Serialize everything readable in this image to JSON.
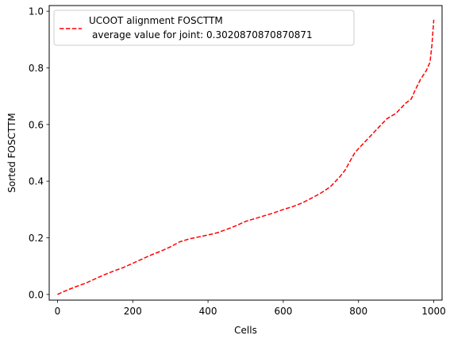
{
  "chart_data": {
    "type": "line",
    "xlabel": "Cells",
    "ylabel": "Sorted FOSCTTM",
    "xlim": [
      -22,
      1022
    ],
    "ylim": [
      -0.02,
      1.02
    ],
    "xticks": [
      0,
      200,
      400,
      600,
      800,
      1000
    ],
    "xtick_labels": [
      "0",
      "200",
      "400",
      "600",
      "800",
      "1000"
    ],
    "yticks": [
      0.0,
      0.2,
      0.4,
      0.6,
      0.8,
      1.0
    ],
    "ytick_labels": [
      "0.0",
      "0.2",
      "0.4",
      "0.6",
      "0.8",
      "1.0"
    ],
    "grid": false,
    "legend_position": "top-left",
    "series": [
      {
        "name": "UCOOT alignment FOSCTTM\n average value for joint: 0.3020870870870871",
        "color": "#ff0000",
        "line_style": "dashed",
        "x": [
          0,
          25,
          50,
          75,
          100,
          125,
          150,
          175,
          200,
          225,
          250,
          275,
          300,
          325,
          350,
          375,
          400,
          425,
          450,
          475,
          500,
          525,
          550,
          575,
          600,
          625,
          650,
          675,
          700,
          725,
          750,
          765,
          775,
          790,
          800,
          825,
          850,
          875,
          900,
          925,
          940,
          950,
          965,
          980,
          990,
          995,
          1000
        ],
        "y": [
          0.0,
          0.015,
          0.028,
          0.04,
          0.055,
          0.07,
          0.083,
          0.095,
          0.11,
          0.125,
          0.14,
          0.153,
          0.168,
          0.186,
          0.196,
          0.203,
          0.21,
          0.218,
          0.23,
          0.243,
          0.258,
          0.268,
          0.278,
          0.288,
          0.3,
          0.31,
          0.323,
          0.34,
          0.358,
          0.38,
          0.415,
          0.44,
          0.465,
          0.5,
          0.515,
          0.55,
          0.585,
          0.62,
          0.64,
          0.675,
          0.69,
          0.72,
          0.76,
          0.79,
          0.82,
          0.88,
          0.97
        ]
      }
    ]
  },
  "legend": {
    "line1": "UCOOT alignment FOSCTTM",
    "line2": "average value for joint: 0.3020870870870871"
  }
}
